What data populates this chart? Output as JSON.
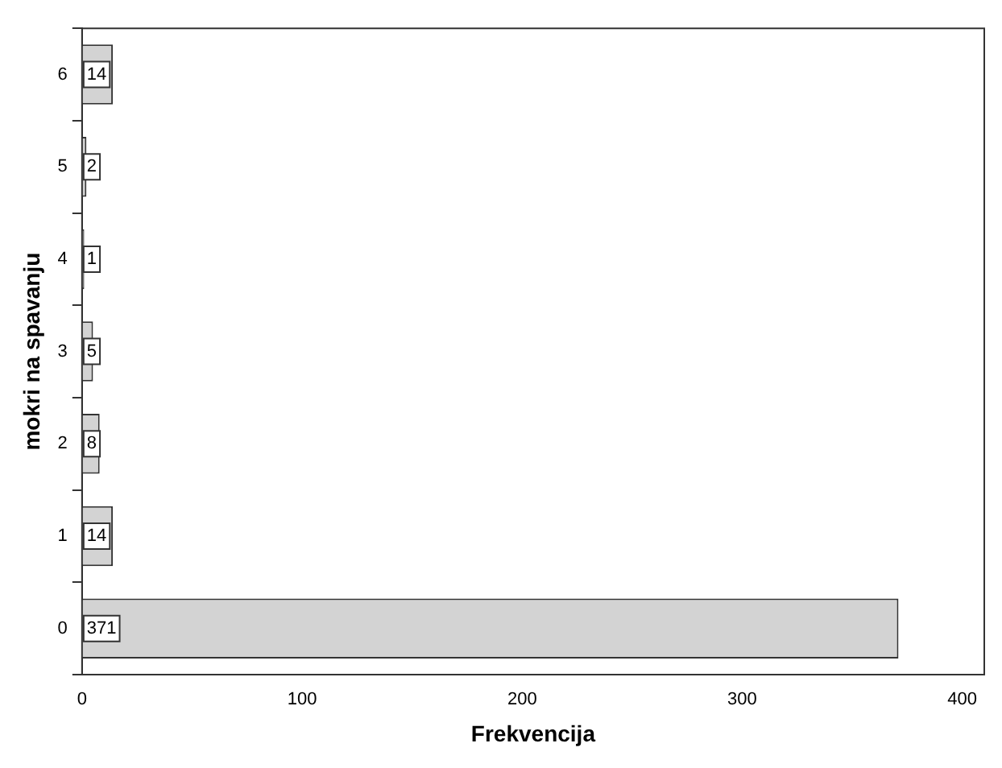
{
  "chart_data": {
    "type": "bar",
    "orientation": "horizontal",
    "xlabel": "Frekvencija",
    "ylabel": "mokri na spavanju",
    "categories": [
      "6",
      "5",
      "4",
      "3",
      "2",
      "1",
      "0"
    ],
    "values": [
      14,
      2,
      1,
      5,
      8,
      14,
      371
    ],
    "color": "#d3d3d3",
    "xlim": [
      0,
      410
    ],
    "xticks": [
      0,
      100,
      200,
      300,
      400
    ],
    "data_labels": true,
    "grid": false,
    "legend": false
  }
}
